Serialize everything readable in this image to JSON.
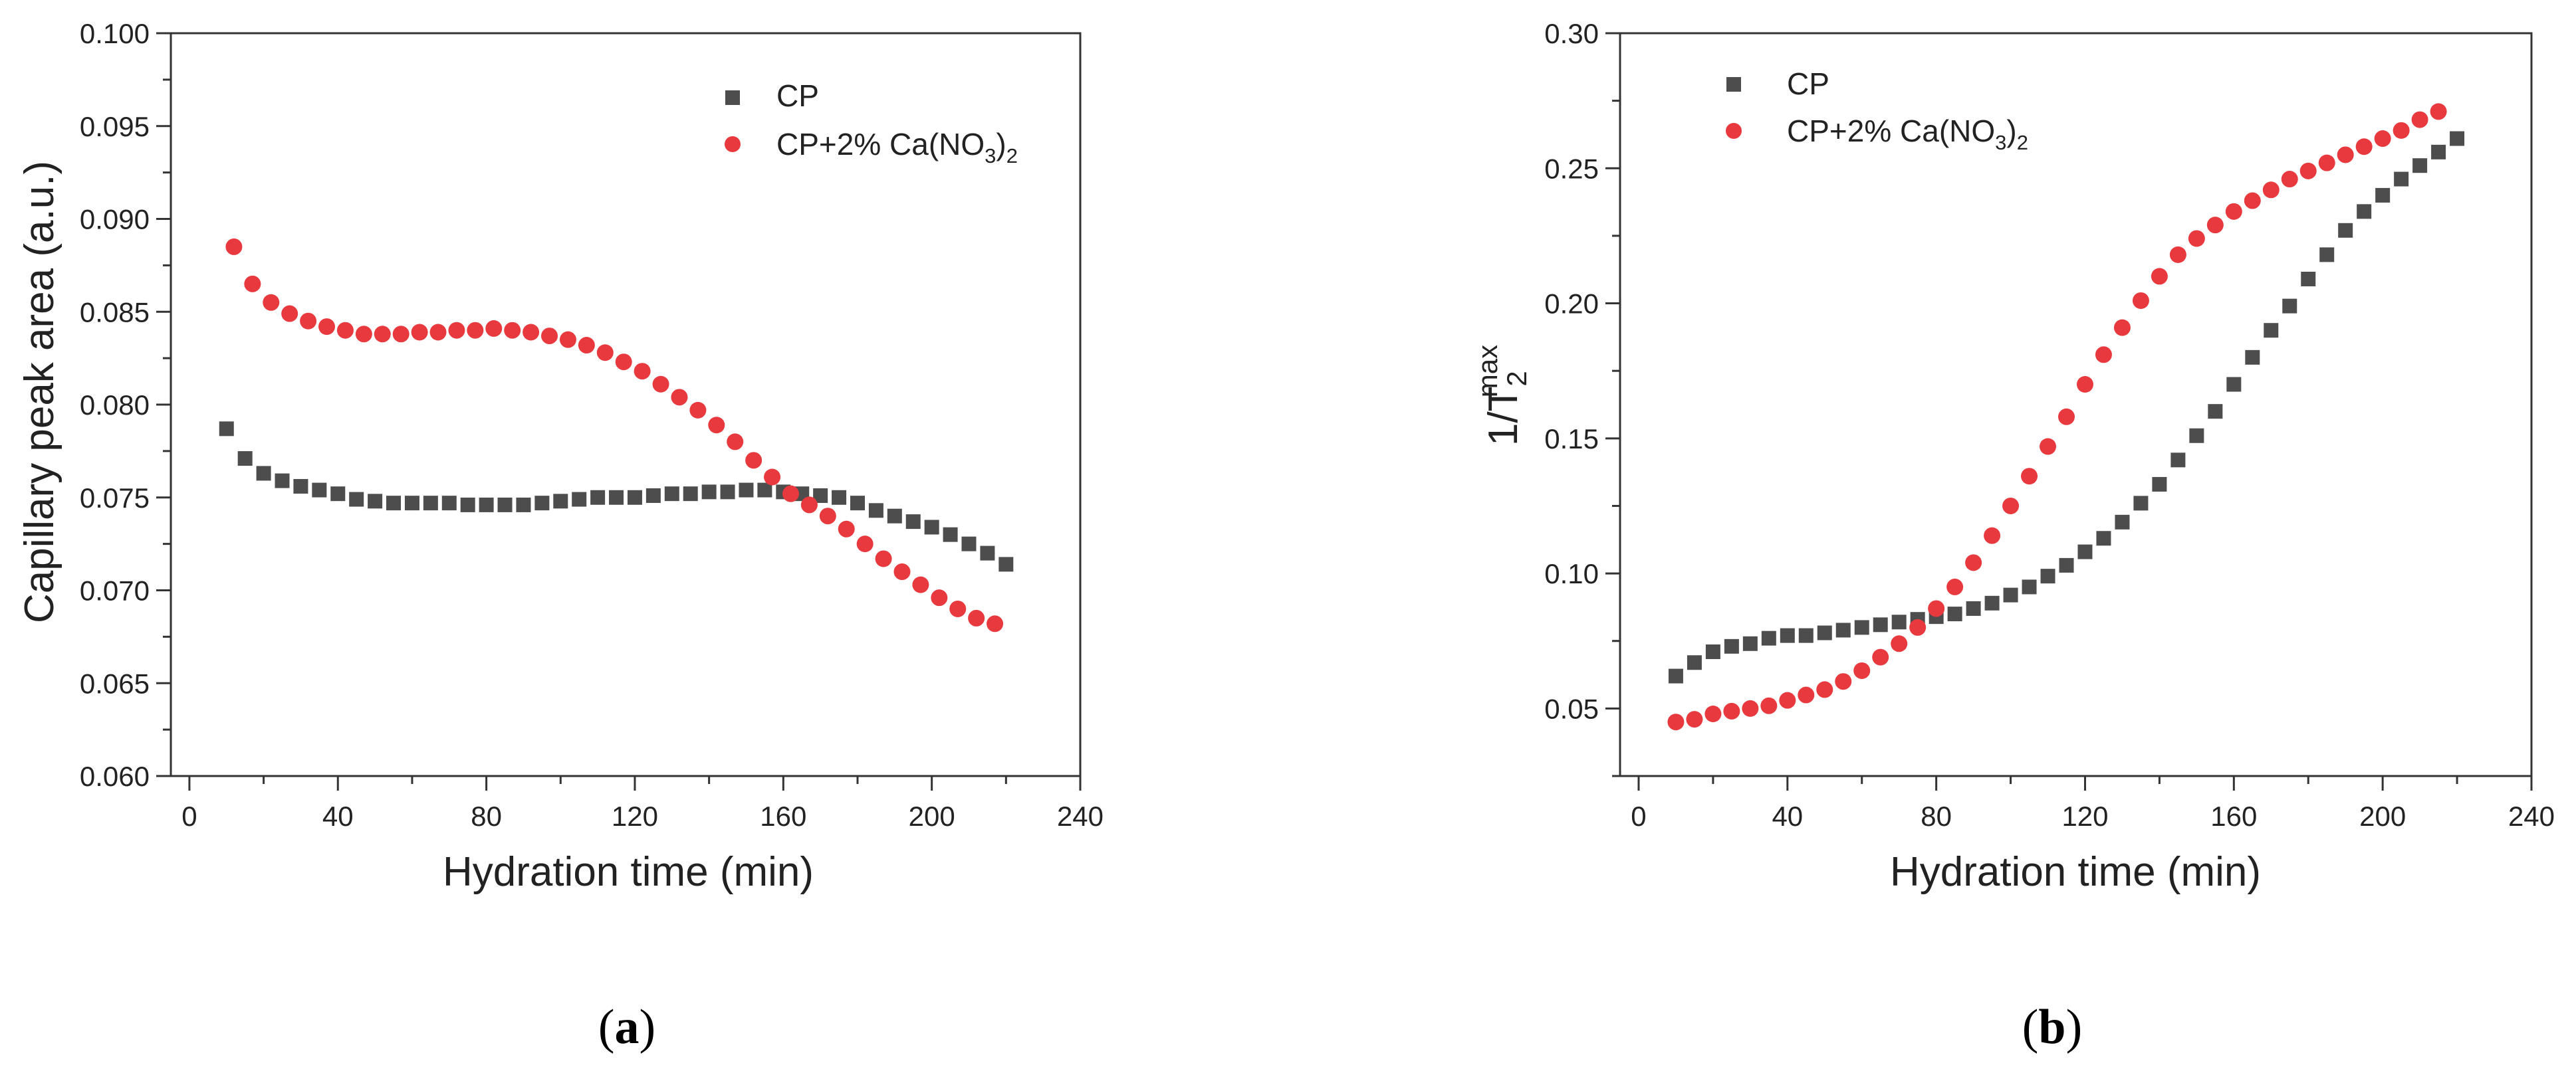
{
  "chart_data": [
    {
      "type": "scatter",
      "panel": "a",
      "title": "",
      "xlabel": "Hydration time (min)",
      "ylabel": "Capillary peak area (a.u.)",
      "xlim": [
        -5,
        240
      ],
      "ylim": [
        0.06,
        0.1
      ],
      "xticks": [
        "0",
        "40",
        "80",
        "120",
        "160",
        "200",
        "240"
      ],
      "yticks": [
        "0.060",
        "0.065",
        "0.070",
        "0.075",
        "0.080",
        "0.085",
        "0.090",
        "0.095",
        "0.100"
      ],
      "legend_position": "top-right",
      "series": [
        {
          "name": "CP",
          "marker": "square",
          "color": "#4d4d4d",
          "x": [
            10,
            15,
            20,
            25,
            30,
            35,
            40,
            45,
            50,
            55,
            60,
            65,
            70,
            75,
            80,
            85,
            90,
            95,
            100,
            105,
            110,
            115,
            120,
            125,
            130,
            135,
            140,
            145,
            150,
            155,
            160,
            165,
            170,
            175,
            180,
            185,
            190,
            195,
            200,
            205,
            210,
            215,
            220
          ],
          "y": [
            0.0787,
            0.0771,
            0.0763,
            0.0759,
            0.0756,
            0.0754,
            0.0752,
            0.0749,
            0.0748,
            0.0747,
            0.0747,
            0.0747,
            0.0747,
            0.0746,
            0.0746,
            0.0746,
            0.0746,
            0.0747,
            0.0748,
            0.0749,
            0.075,
            0.075,
            0.075,
            0.0751,
            0.0752,
            0.0752,
            0.0753,
            0.0753,
            0.0754,
            0.0754,
            0.0753,
            0.0752,
            0.0751,
            0.075,
            0.0747,
            0.0743,
            0.074,
            0.0737,
            0.0734,
            0.073,
            0.0725,
            0.072,
            0.0714
          ]
        },
        {
          "name": "CP+2% Ca(NO3)2",
          "marker": "circle",
          "color": "#e8393e",
          "x": [
            12,
            17,
            22,
            27,
            32,
            37,
            42,
            47,
            52,
            57,
            62,
            67,
            72,
            77,
            82,
            87,
            92,
            97,
            102,
            107,
            112,
            117,
            122,
            127,
            132,
            137,
            142,
            147,
            152,
            157,
            162,
            167,
            172,
            177,
            182,
            187,
            192,
            197,
            202,
            207,
            212,
            217
          ],
          "y": [
            0.0885,
            0.0865,
            0.0855,
            0.0849,
            0.0845,
            0.0842,
            0.084,
            0.0838,
            0.0838,
            0.0838,
            0.0839,
            0.0839,
            0.084,
            0.084,
            0.0841,
            0.084,
            0.0839,
            0.0837,
            0.0835,
            0.0832,
            0.0828,
            0.0823,
            0.0818,
            0.0811,
            0.0804,
            0.0797,
            0.0789,
            0.078,
            0.077,
            0.0761,
            0.0752,
            0.0746,
            0.074,
            0.0733,
            0.0725,
            0.0717,
            0.071,
            0.0703,
            0.0696,
            0.069,
            0.0685,
            0.0682
          ]
        }
      ]
    },
    {
      "type": "scatter",
      "panel": "b",
      "title": "",
      "xlabel": "Hydration time (min)",
      "ylabel": "1/T2max",
      "xlim": [
        -5,
        240
      ],
      "ylim": [
        0.025,
        0.3
      ],
      "xticks": [
        "0",
        "40",
        "80",
        "120",
        "160",
        "200",
        "240"
      ],
      "yticks": [
        "0.05",
        "0.10",
        "0.15",
        "0.20",
        "0.25",
        "0.30"
      ],
      "legend_position": "top-left",
      "series": [
        {
          "name": "CP",
          "marker": "square",
          "color": "#4d4d4d",
          "x": [
            10,
            15,
            20,
            25,
            30,
            35,
            40,
            45,
            50,
            55,
            60,
            65,
            70,
            75,
            80,
            85,
            90,
            95,
            100,
            105,
            110,
            115,
            120,
            125,
            130,
            135,
            140,
            145,
            150,
            155,
            160,
            165,
            170,
            175,
            180,
            185,
            190,
            195,
            200,
            205,
            210,
            215,
            220
          ],
          "y": [
            0.062,
            0.067,
            0.071,
            0.073,
            0.074,
            0.076,
            0.077,
            0.077,
            0.078,
            0.079,
            0.08,
            0.081,
            0.082,
            0.083,
            0.084,
            0.085,
            0.087,
            0.089,
            0.092,
            0.095,
            0.099,
            0.103,
            0.108,
            0.113,
            0.119,
            0.126,
            0.133,
            0.142,
            0.151,
            0.16,
            0.17,
            0.18,
            0.19,
            0.199,
            0.209,
            0.218,
            0.227,
            0.234,
            0.24,
            0.246,
            0.251,
            0.256,
            0.261
          ]
        },
        {
          "name": "CP+2% Ca(NO3)2",
          "marker": "circle",
          "color": "#e8393e",
          "x": [
            10,
            15,
            20,
            25,
            30,
            35,
            40,
            45,
            50,
            55,
            60,
            65,
            70,
            75,
            80,
            85,
            90,
            95,
            100,
            105,
            110,
            115,
            120,
            125,
            130,
            135,
            140,
            145,
            150,
            155,
            160,
            165,
            170,
            175,
            180,
            185,
            190,
            195,
            200,
            205,
            210,
            215
          ],
          "y": [
            0.045,
            0.046,
            0.048,
            0.049,
            0.05,
            0.051,
            0.053,
            0.055,
            0.057,
            0.06,
            0.064,
            0.069,
            0.074,
            0.08,
            0.087,
            0.095,
            0.104,
            0.114,
            0.125,
            0.136,
            0.147,
            0.158,
            0.17,
            0.181,
            0.191,
            0.201,
            0.21,
            0.218,
            0.224,
            0.229,
            0.234,
            0.238,
            0.242,
            0.246,
            0.249,
            0.252,
            0.255,
            0.258,
            0.261,
            0.264,
            0.268,
            0.271
          ]
        }
      ]
    }
  ],
  "legend": {
    "a": {
      "cp": "CP",
      "ca_prefix": "CP+2% Ca(NO",
      "ca_sub3": "3",
      "ca_close": ")",
      "ca_sub2": "2"
    },
    "b": {
      "cp": "CP",
      "ca_prefix": "CP+2% Ca(NO",
      "ca_sub3": "3",
      "ca_close": ")",
      "ca_sub2": "2"
    }
  },
  "ylabel_b_parts": {
    "base": "1/T",
    "sub": "2",
    "sup": "max"
  },
  "panel_labels": {
    "a": {
      "open": "(",
      "letter": "a",
      "close": ")"
    },
    "b": {
      "open": "(",
      "letter": "b",
      "close": ")"
    }
  }
}
